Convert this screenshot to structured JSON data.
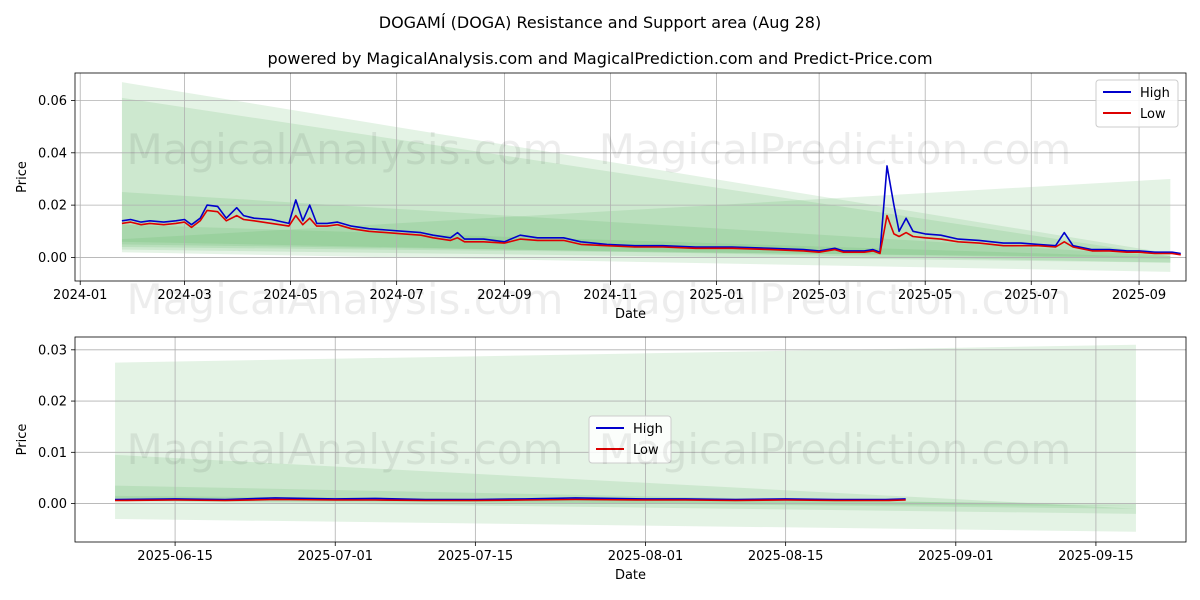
{
  "title": "DOGAMÍ (DOGA) Resistance and Support area (Aug 28)",
  "subtitle": "powered by MagicalAnalysis.com and MagicalPrediction.com and Predict-Price.com",
  "watermarks": [
    "MagicalAnalysis.com",
    "MagicalPrediction.com"
  ],
  "colors": {
    "high": "#0000cc",
    "low": "#dd0000",
    "band": "#4caf50",
    "grid": "#b0b0b0"
  },
  "chart_data": [
    {
      "type": "line",
      "xlabel": "Date",
      "ylabel": "Price",
      "x_range": [
        "2023-12-29",
        "2025-09-28"
      ],
      "ylim": [
        -0.009,
        0.0705
      ],
      "x_ticks": [
        "2024-01",
        "2024-03",
        "2024-05",
        "2024-07",
        "2024-09",
        "2024-11",
        "2025-01",
        "2025-03",
        "2025-05",
        "2025-07",
        "2025-09"
      ],
      "x_tick_dates": [
        "2024-01-01",
        "2024-03-01",
        "2024-05-01",
        "2024-07-01",
        "2024-09-01",
        "2024-11-01",
        "2025-01-01",
        "2025-03-01",
        "2025-05-01",
        "2025-07-01",
        "2025-09-01"
      ],
      "y_ticks": [
        "0.00",
        "0.02",
        "0.04",
        "0.06"
      ],
      "y_tick_values": [
        0.0,
        0.02,
        0.04,
        0.06
      ],
      "grid": true,
      "legend": "top-right",
      "bands": [
        {
          "start": "2024-01-25",
          "end": "2025-09-19",
          "upper": [
            0.067,
            0.0015
          ],
          "lower": [
            0.003,
            -0.002
          ]
        },
        {
          "start": "2024-01-25",
          "end": "2025-09-19",
          "upper": [
            0.061,
            0.0005
          ],
          "lower": [
            0.004,
            0.0
          ]
        },
        {
          "start": "2024-01-25",
          "end": "2025-09-19",
          "upper": [
            0.025,
            0.0005
          ],
          "lower": [
            0.006,
            -0.002
          ]
        },
        {
          "start": "2024-01-25",
          "end": "2025-09-19",
          "upper": [
            0.0125,
            0.0
          ],
          "lower": [
            0.005,
            -0.0005
          ]
        },
        {
          "start": "2024-01-25",
          "end": "2025-09-19",
          "upper": [
            0.007,
            0.03
          ],
          "lower": [
            0.002,
            -0.0055
          ]
        }
      ],
      "series": [
        {
          "name": "High",
          "points": [
            [
              "2024-01-25",
              0.014
            ],
            [
              "2024-01-30",
              0.0145
            ],
            [
              "2024-02-05",
              0.0135
            ],
            [
              "2024-02-10",
              0.014
            ],
            [
              "2024-02-18",
              0.0135
            ],
            [
              "2024-02-25",
              0.014
            ],
            [
              "2024-03-01",
              0.0145
            ],
            [
              "2024-03-05",
              0.0125
            ],
            [
              "2024-03-10",
              0.015
            ],
            [
              "2024-03-14",
              0.02
            ],
            [
              "2024-03-20",
              0.0195
            ],
            [
              "2024-03-25",
              0.015
            ],
            [
              "2024-03-31",
              0.019
            ],
            [
              "2024-04-04",
              0.016
            ],
            [
              "2024-04-10",
              0.015
            ],
            [
              "2024-04-20",
              0.0145
            ],
            [
              "2024-04-30",
              0.013
            ],
            [
              "2024-05-04",
              0.022
            ],
            [
              "2024-05-08",
              0.014
            ],
            [
              "2024-05-12",
              0.02
            ],
            [
              "2024-05-16",
              0.013
            ],
            [
              "2024-05-22",
              0.013
            ],
            [
              "2024-05-28",
              0.0135
            ],
            [
              "2024-06-05",
              0.012
            ],
            [
              "2024-06-15",
              0.011
            ],
            [
              "2024-06-25",
              0.0105
            ],
            [
              "2024-07-05",
              0.01
            ],
            [
              "2024-07-15",
              0.0095
            ],
            [
              "2024-07-22",
              0.0085
            ],
            [
              "2024-08-01",
              0.0075
            ],
            [
              "2024-08-05",
              0.0095
            ],
            [
              "2024-08-09",
              0.007
            ],
            [
              "2024-08-20",
              0.007
            ],
            [
              "2024-09-01",
              0.006
            ],
            [
              "2024-09-10",
              0.0085
            ],
            [
              "2024-09-20",
              0.0075
            ],
            [
              "2024-09-30",
              0.0075
            ],
            [
              "2024-10-05",
              0.0075
            ],
            [
              "2024-10-15",
              0.006
            ],
            [
              "2024-10-30",
              0.005
            ],
            [
              "2024-11-15",
              0.0045
            ],
            [
              "2024-12-01",
              0.0045
            ],
            [
              "2024-12-20",
              0.004
            ],
            [
              "2025-01-10",
              0.004
            ],
            [
              "2025-02-01",
              0.0035
            ],
            [
              "2025-02-20",
              0.003
            ],
            [
              "2025-03-01",
              0.0025
            ],
            [
              "2025-03-10",
              0.0035
            ],
            [
              "2025-03-15",
              0.0025
            ],
            [
              "2025-03-27",
              0.0025
            ],
            [
              "2025-04-01",
              0.003
            ],
            [
              "2025-04-05",
              0.002
            ],
            [
              "2025-04-09",
              0.035
            ],
            [
              "2025-04-13",
              0.02
            ],
            [
              "2025-04-16",
              0.01
            ],
            [
              "2025-04-20",
              0.015
            ],
            [
              "2025-04-24",
              0.01
            ],
            [
              "2025-05-01",
              0.009
            ],
            [
              "2025-05-10",
              0.0085
            ],
            [
              "2025-05-20",
              0.007
            ],
            [
              "2025-06-01",
              0.0065
            ],
            [
              "2025-06-15",
              0.0055
            ],
            [
              "2025-06-25",
              0.0055
            ],
            [
              "2025-07-05",
              0.005
            ],
            [
              "2025-07-15",
              0.0045
            ],
            [
              "2025-07-20",
              0.0095
            ],
            [
              "2025-07-25",
              0.0045
            ],
            [
              "2025-08-05",
              0.003
            ],
            [
              "2025-08-15",
              0.003
            ],
            [
              "2025-08-25",
              0.0025
            ],
            [
              "2025-09-01",
              0.0025
            ],
            [
              "2025-09-10",
              0.002
            ],
            [
              "2025-09-20",
              0.002
            ],
            [
              "2025-09-25",
              0.0015
            ]
          ]
        },
        {
          "name": "Low",
          "points": [
            [
              "2024-01-25",
              0.013
            ],
            [
              "2024-01-30",
              0.0135
            ],
            [
              "2024-02-05",
              0.0125
            ],
            [
              "2024-02-10",
              0.013
            ],
            [
              "2024-02-18",
              0.0125
            ],
            [
              "2024-02-25",
              0.013
            ],
            [
              "2024-03-01",
              0.0135
            ],
            [
              "2024-03-05",
              0.0115
            ],
            [
              "2024-03-10",
              0.014
            ],
            [
              "2024-03-14",
              0.018
            ],
            [
              "2024-03-20",
              0.0175
            ],
            [
              "2024-03-25",
              0.014
            ],
            [
              "2024-03-31",
              0.016
            ],
            [
              "2024-04-04",
              0.0145
            ],
            [
              "2024-04-10",
              0.014
            ],
            [
              "2024-04-20",
              0.013
            ],
            [
              "2024-04-30",
              0.012
            ],
            [
              "2024-05-04",
              0.016
            ],
            [
              "2024-05-08",
              0.0125
            ],
            [
              "2024-05-12",
              0.015
            ],
            [
              "2024-05-16",
              0.012
            ],
            [
              "2024-05-22",
              0.012
            ],
            [
              "2024-05-28",
              0.0125
            ],
            [
              "2024-06-05",
              0.011
            ],
            [
              "2024-06-15",
              0.01
            ],
            [
              "2024-06-25",
              0.0095
            ],
            [
              "2024-07-05",
              0.009
            ],
            [
              "2024-07-15",
              0.0085
            ],
            [
              "2024-07-22",
              0.0075
            ],
            [
              "2024-08-01",
              0.0065
            ],
            [
              "2024-08-05",
              0.0075
            ],
            [
              "2024-08-09",
              0.006
            ],
            [
              "2024-08-20",
              0.006
            ],
            [
              "2024-09-01",
              0.0055
            ],
            [
              "2024-09-10",
              0.007
            ],
            [
              "2024-09-20",
              0.0065
            ],
            [
              "2024-09-30",
              0.0065
            ],
            [
              "2024-10-05",
              0.0065
            ],
            [
              "2024-10-15",
              0.005
            ],
            [
              "2024-10-30",
              0.0045
            ],
            [
              "2024-11-15",
              0.004
            ],
            [
              "2024-12-01",
              0.004
            ],
            [
              "2024-12-20",
              0.0035
            ],
            [
              "2025-01-10",
              0.0035
            ],
            [
              "2025-02-01",
              0.003
            ],
            [
              "2025-02-20",
              0.0025
            ],
            [
              "2025-03-01",
              0.002
            ],
            [
              "2025-03-10",
              0.003
            ],
            [
              "2025-03-15",
              0.002
            ],
            [
              "2025-03-27",
              0.002
            ],
            [
              "2025-04-01",
              0.0025
            ],
            [
              "2025-04-05",
              0.0015
            ],
            [
              "2025-04-09",
              0.016
            ],
            [
              "2025-04-13",
              0.009
            ],
            [
              "2025-04-16",
              0.008
            ],
            [
              "2025-04-20",
              0.0095
            ],
            [
              "2025-04-24",
              0.008
            ],
            [
              "2025-05-01",
              0.0075
            ],
            [
              "2025-05-10",
              0.007
            ],
            [
              "2025-05-20",
              0.006
            ],
            [
              "2025-06-01",
              0.0055
            ],
            [
              "2025-06-15",
              0.0045
            ],
            [
              "2025-06-25",
              0.0045
            ],
            [
              "2025-07-05",
              0.0045
            ],
            [
              "2025-07-15",
              0.004
            ],
            [
              "2025-07-20",
              0.006
            ],
            [
              "2025-07-25",
              0.004
            ],
            [
              "2025-08-05",
              0.0025
            ],
            [
              "2025-08-15",
              0.0025
            ],
            [
              "2025-08-25",
              0.002
            ],
            [
              "2025-09-01",
              0.002
            ],
            [
              "2025-09-10",
              0.0015
            ],
            [
              "2025-09-20",
              0.0015
            ],
            [
              "2025-09-25",
              0.001
            ]
          ]
        }
      ]
    },
    {
      "type": "line",
      "xlabel": "Date",
      "ylabel": "Price",
      "x_range": [
        "2025-06-05",
        "2025-09-24"
      ],
      "ylim": [
        -0.0075,
        0.0325
      ],
      "x_ticks": [
        "2025-06-15",
        "2025-07-01",
        "2025-07-15",
        "2025-08-01",
        "2025-08-15",
        "2025-09-01",
        "2025-09-15"
      ],
      "x_tick_dates": [
        "2025-06-15",
        "2025-07-01",
        "2025-07-15",
        "2025-08-01",
        "2025-08-15",
        "2025-09-01",
        "2025-09-15"
      ],
      "y_ticks": [
        "0.00",
        "0.01",
        "0.02",
        "0.03"
      ],
      "y_tick_values": [
        0.0,
        0.01,
        0.02,
        0.03
      ],
      "grid": true,
      "legend": "center",
      "bands": [
        {
          "start": "2025-06-09",
          "end": "2025-09-19",
          "upper": [
            0.0275,
            0.031
          ],
          "lower": [
            -0.003,
            -0.0055
          ]
        },
        {
          "start": "2025-06-09",
          "end": "2025-09-19",
          "upper": [
            0.0095,
            -0.001
          ],
          "lower": [
            0.0005,
            -0.002
          ]
        },
        {
          "start": "2025-06-09",
          "end": "2025-09-19",
          "upper": [
            0.0035,
            -0.0005
          ],
          "lower": [
            0.001,
            -0.001
          ]
        },
        {
          "start": "2025-06-09",
          "end": "2025-09-19",
          "upper": [
            0.0015,
            0.0
          ],
          "lower": [
            0.0005,
            -0.0005
          ]
        }
      ],
      "series": [
        {
          "name": "High",
          "points": [
            [
              "2025-06-09",
              0.0008
            ],
            [
              "2025-06-15",
              0.0009
            ],
            [
              "2025-06-20",
              0.0008
            ],
            [
              "2025-06-25",
              0.0011
            ],
            [
              "2025-07-01",
              0.0009
            ],
            [
              "2025-07-05",
              0.001
            ],
            [
              "2025-07-10",
              0.0008
            ],
            [
              "2025-07-15",
              0.0008
            ],
            [
              "2025-07-20",
              0.0009
            ],
            [
              "2025-07-25",
              0.0011
            ],
            [
              "2025-08-01",
              0.0009
            ],
            [
              "2025-08-05",
              0.0009
            ],
            [
              "2025-08-10",
              0.0008
            ],
            [
              "2025-08-15",
              0.0009
            ],
            [
              "2025-08-20",
              0.0008
            ],
            [
              "2025-08-25",
              0.0008
            ],
            [
              "2025-08-27",
              0.0009
            ]
          ]
        },
        {
          "name": "Low",
          "points": [
            [
              "2025-06-09",
              0.0006
            ],
            [
              "2025-06-15",
              0.0007
            ],
            [
              "2025-06-20",
              0.0006
            ],
            [
              "2025-06-25",
              0.0008
            ],
            [
              "2025-07-01",
              0.0007
            ],
            [
              "2025-07-05",
              0.0007
            ],
            [
              "2025-07-10",
              0.0006
            ],
            [
              "2025-07-15",
              0.0006
            ],
            [
              "2025-07-20",
              0.0007
            ],
            [
              "2025-07-25",
              0.0008
            ],
            [
              "2025-08-01",
              0.0007
            ],
            [
              "2025-08-05",
              0.0007
            ],
            [
              "2025-08-10",
              0.0006
            ],
            [
              "2025-08-15",
              0.0007
            ],
            [
              "2025-08-20",
              0.0006
            ],
            [
              "2025-08-25",
              0.0006
            ],
            [
              "2025-08-27",
              0.0007
            ]
          ]
        }
      ]
    }
  ]
}
